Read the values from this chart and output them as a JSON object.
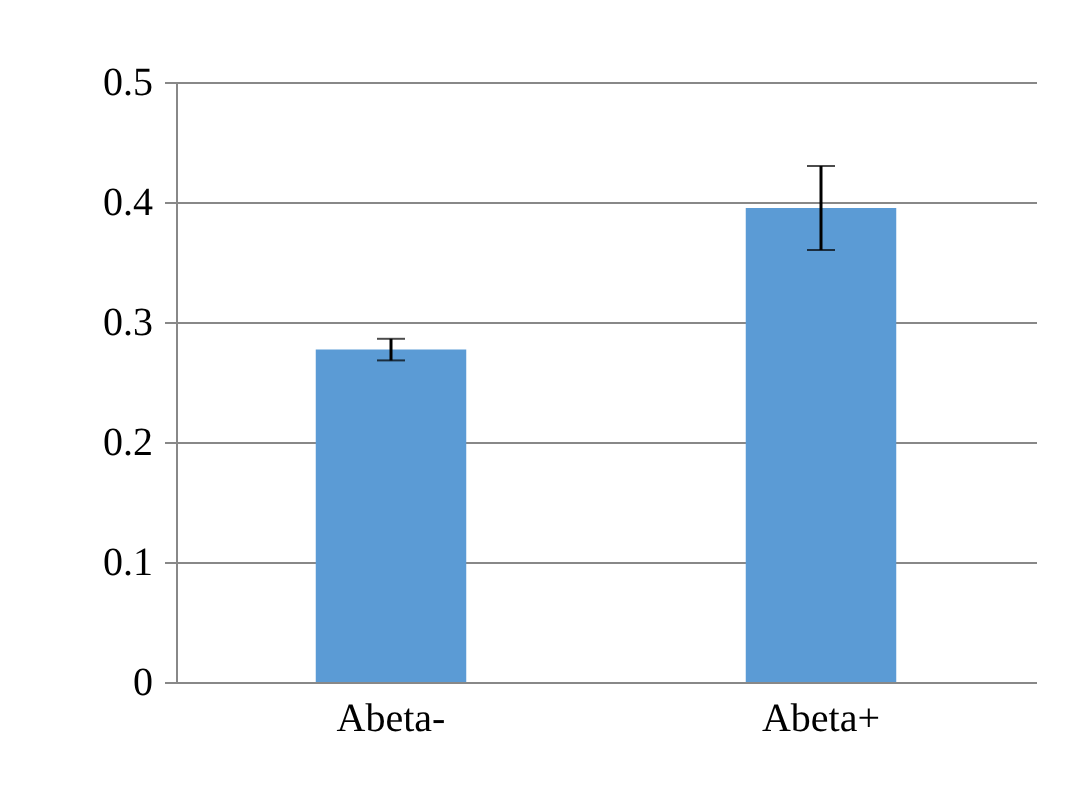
{
  "chart_data": {
    "type": "bar",
    "categories": [
      "Abeta-",
      "Abeta+"
    ],
    "values": [
      0.277,
      0.395
    ],
    "errors": [
      0.009,
      0.035
    ],
    "color": "#5b9bd5",
    "ylim": [
      0,
      0.5
    ],
    "yticks": [
      0,
      0.1,
      0.2,
      0.3,
      0.4,
      0.5
    ],
    "grid": "y"
  }
}
